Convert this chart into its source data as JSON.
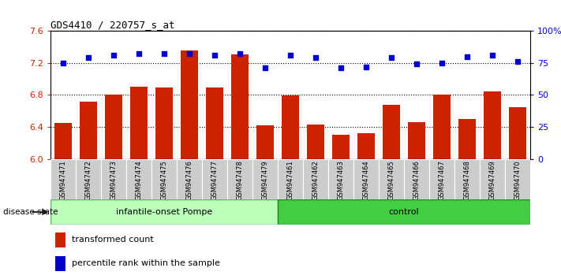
{
  "title": "GDS4410 / 220757_s_at",
  "samples": [
    "GSM947471",
    "GSM947472",
    "GSM947473",
    "GSM947474",
    "GSM947475",
    "GSM947476",
    "GSM947477",
    "GSM947478",
    "GSM947479",
    "GSM947461",
    "GSM947462",
    "GSM947463",
    "GSM947464",
    "GSM947465",
    "GSM947466",
    "GSM947467",
    "GSM947468",
    "GSM947469",
    "GSM947470"
  ],
  "bar_values": [
    6.45,
    6.72,
    6.8,
    6.9,
    6.89,
    7.35,
    6.89,
    7.3,
    6.42,
    6.79,
    6.43,
    6.3,
    6.32,
    6.68,
    6.46,
    6.8,
    6.5,
    6.84,
    6.65
  ],
  "dot_values": [
    75,
    79,
    81,
    82,
    82,
    82,
    81,
    82,
    71,
    81,
    79,
    71,
    72,
    79,
    74,
    75,
    80,
    81,
    76
  ],
  "bar_color": "#cc2200",
  "dot_color": "#0000cc",
  "ylim_left": [
    6.0,
    7.6
  ],
  "ylim_right": [
    0,
    100
  ],
  "yticks_left": [
    6.0,
    6.4,
    6.8,
    7.2,
    7.6
  ],
  "yticks_right": [
    0,
    25,
    50,
    75,
    100
  ],
  "ytick_labels_right": [
    "0",
    "25",
    "50",
    "75",
    "100%"
  ],
  "group1_label": "infantile-onset Pompe",
  "group2_label": "control",
  "group1_n": 9,
  "group2_n": 10,
  "group1_color": "#bbffbb",
  "group2_color": "#44cc44",
  "disease_state_label": "disease state",
  "legend1_label": "transformed count",
  "legend2_label": "percentile rank within the sample",
  "bar_color_legend": "#cc2200",
  "dot_color_legend": "#0000cc",
  "grid_color": "#000000",
  "background_xtick": "#bbbbbb",
  "bar_width": 0.7,
  "dot_size": 18
}
